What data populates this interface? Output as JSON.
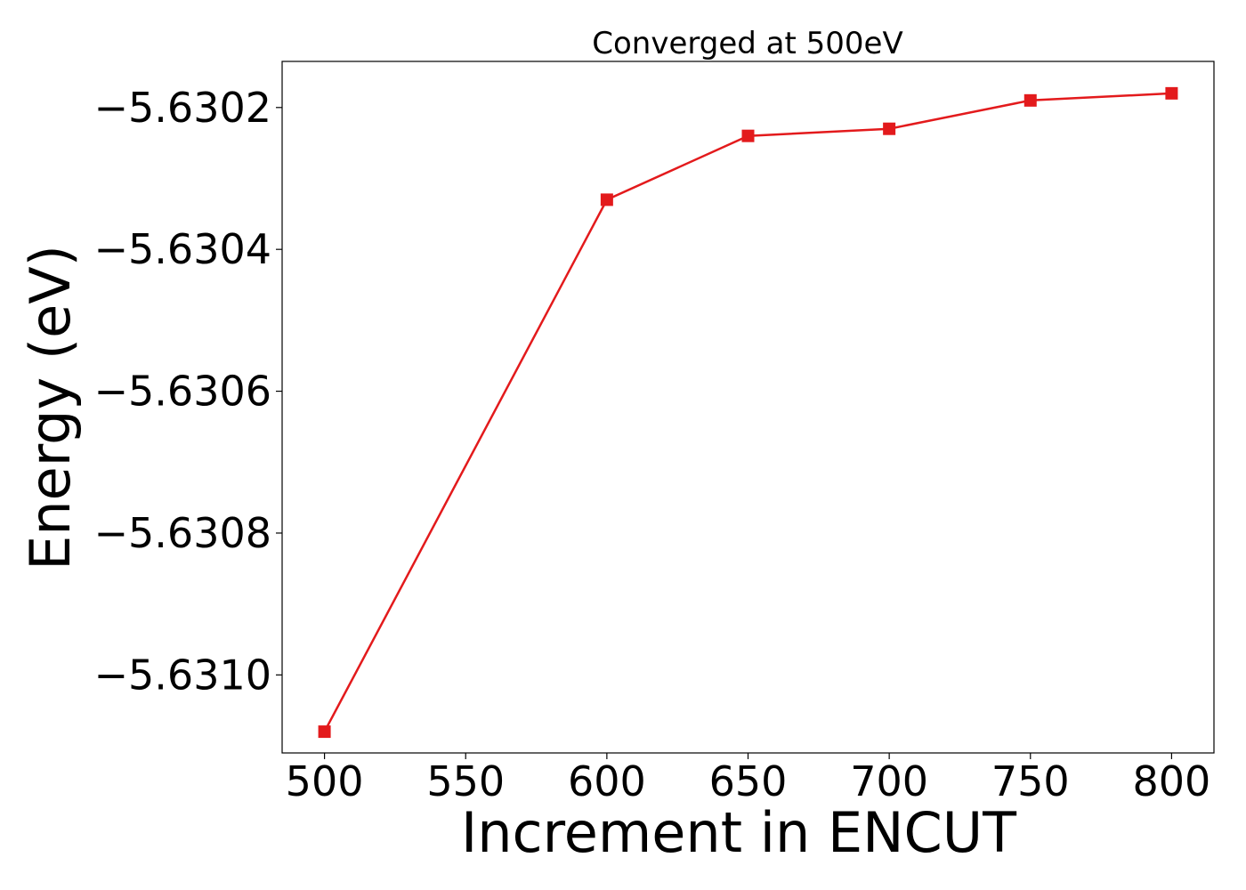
{
  "colors": {
    "series": "#e31a1c",
    "background": "#ffffff",
    "axes": "#000000"
  },
  "chart_data": {
    "type": "line",
    "title": "Converged at 500eV",
    "xlabel": "Increment in ENCUT",
    "ylabel": "Energy (eV)",
    "x": [
      500,
      600,
      650,
      700,
      750,
      800
    ],
    "series": [
      {
        "marker": "square",
        "color": "#e31a1c",
        "values": [
          -5.63108,
          -5.63033,
          -5.63024,
          -5.63023,
          -5.63019,
          -5.63018
        ]
      }
    ],
    "xticks": [
      500,
      550,
      600,
      650,
      700,
      750,
      800
    ],
    "xtick_labels": [
      "500",
      "550",
      "600",
      "650",
      "700",
      "750",
      "800"
    ],
    "yticks": [
      -5.6302,
      -5.6304,
      -5.6306,
      -5.6308,
      -5.631
    ],
    "ytick_labels": [
      "−5.6302",
      "−5.6304",
      "−5.6306",
      "−5.6308",
      "−5.6310"
    ],
    "xlim": [
      485,
      815
    ],
    "ylim": [
      -5.63111,
      -5.630135
    ],
    "grid": false,
    "legend": "none"
  }
}
